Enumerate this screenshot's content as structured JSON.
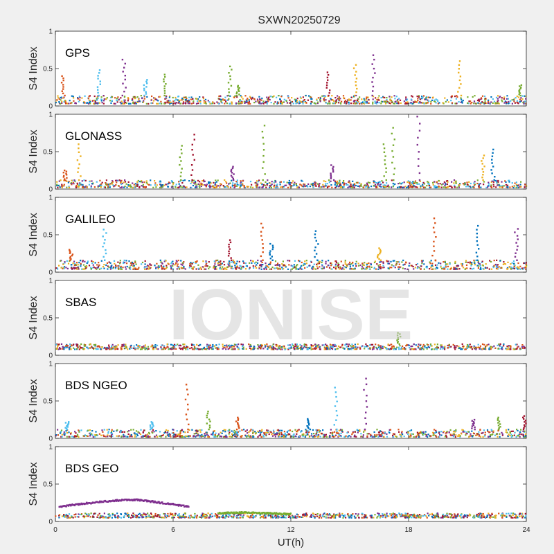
{
  "figure": {
    "title": "SXWN20250729",
    "xlabel": "UT(h)",
    "watermark": "IONISE"
  },
  "colors": {
    "figure_background": "#f0f0f0",
    "axes_background": "#ffffff",
    "series_palette": [
      "#0072BD",
      "#D95319",
      "#EDB120",
      "#7E2F8E",
      "#77AC30",
      "#4DBEEE",
      "#A2142F"
    ]
  },
  "chart_data": [
    {
      "type": "scatter",
      "label": "GPS",
      "ylabel": "S4 Index",
      "xlim": [
        0,
        24
      ],
      "ylim": [
        0,
        1
      ],
      "yticks": [
        0,
        0.5,
        1
      ],
      "ytick_labels": [
        "0",
        "0.5",
        "1"
      ],
      "xticks": [
        0,
        6,
        12,
        18,
        24
      ],
      "xtick_labels": [],
      "baseline": [
        0.03,
        0.14
      ],
      "spikes": [
        {
          "x": 0.4,
          "y": 0.4,
          "color": "#D95319"
        },
        {
          "x": 2.2,
          "y": 0.48,
          "color": "#4DBEEE"
        },
        {
          "x": 3.5,
          "y": 0.62,
          "color": "#7E2F8E"
        },
        {
          "x": 4.6,
          "y": 0.35,
          "color": "#4DBEEE"
        },
        {
          "x": 5.6,
          "y": 0.42,
          "color": "#77AC30"
        },
        {
          "x": 8.9,
          "y": 0.53,
          "color": "#77AC30"
        },
        {
          "x": 9.3,
          "y": 0.27,
          "color": "#77AC30"
        },
        {
          "x": 13.9,
          "y": 0.45,
          "color": "#A2142F"
        },
        {
          "x": 15.3,
          "y": 0.55,
          "color": "#EDB120"
        },
        {
          "x": 16.2,
          "y": 0.68,
          "color": "#7E2F8E"
        },
        {
          "x": 20.6,
          "y": 0.6,
          "color": "#EDB120"
        },
        {
          "x": 23.7,
          "y": 0.28,
          "color": "#77AC30"
        }
      ]
    },
    {
      "type": "scatter",
      "label": "GLONASS",
      "ylabel": "S4 Index",
      "xlim": [
        0,
        24
      ],
      "ylim": [
        0,
        1
      ],
      "yticks": [
        0,
        0.5,
        1
      ],
      "ytick_labels": [
        "0",
        "0.5",
        "1"
      ],
      "xticks": [
        0,
        6,
        12,
        18,
        24
      ],
      "xtick_labels": [],
      "baseline": [
        0.02,
        0.12
      ],
      "spikes": [
        {
          "x": 0.5,
          "y": 0.25,
          "color": "#D95319"
        },
        {
          "x": 1.2,
          "y": 0.6,
          "color": "#EDB120"
        },
        {
          "x": 6.4,
          "y": 0.58,
          "color": "#77AC30"
        },
        {
          "x": 7.0,
          "y": 0.73,
          "color": "#A2142F"
        },
        {
          "x": 9.0,
          "y": 0.3,
          "color": "#7E2F8E"
        },
        {
          "x": 10.6,
          "y": 0.85,
          "color": "#77AC30"
        },
        {
          "x": 14.1,
          "y": 0.32,
          "color": "#7E2F8E"
        },
        {
          "x": 16.8,
          "y": 0.6,
          "color": "#77AC30"
        },
        {
          "x": 17.2,
          "y": 0.82,
          "color": "#77AC30"
        },
        {
          "x": 18.5,
          "y": 0.97,
          "color": "#7E2F8E"
        },
        {
          "x": 21.8,
          "y": 0.45,
          "color": "#EDB120"
        },
        {
          "x": 22.3,
          "y": 0.53,
          "color": "#0072BD"
        }
      ]
    },
    {
      "type": "scatter",
      "label": "GALILEO",
      "ylabel": "S4 Index",
      "xlim": [
        0,
        24
      ],
      "ylim": [
        0,
        1
      ],
      "yticks": [
        0,
        0.5,
        1
      ],
      "ytick_labels": [
        "0",
        "0.5",
        "1"
      ],
      "xticks": [
        0,
        6,
        12,
        18,
        24
      ],
      "xtick_labels": [],
      "baseline": [
        0.04,
        0.16
      ],
      "spikes": [
        {
          "x": 0.8,
          "y": 0.3,
          "color": "#D95319"
        },
        {
          "x": 2.5,
          "y": 0.57,
          "color": "#4DBEEE"
        },
        {
          "x": 8.9,
          "y": 0.43,
          "color": "#A2142F"
        },
        {
          "x": 10.5,
          "y": 0.65,
          "color": "#D95319"
        },
        {
          "x": 11.0,
          "y": 0.38,
          "color": "#0072BD"
        },
        {
          "x": 13.3,
          "y": 0.55,
          "color": "#0072BD"
        },
        {
          "x": 16.5,
          "y": 0.32,
          "color": "#EDB120"
        },
        {
          "x": 19.3,
          "y": 0.72,
          "color": "#D95319"
        },
        {
          "x": 21.5,
          "y": 0.62,
          "color": "#0072BD"
        },
        {
          "x": 23.5,
          "y": 0.58,
          "color": "#7E2F8E"
        }
      ]
    },
    {
      "type": "scatter",
      "label": "SBAS",
      "ylabel": "S4 Index",
      "xlim": [
        0,
        24
      ],
      "ylim": [
        0,
        1
      ],
      "yticks": [
        0,
        0.5,
        1
      ],
      "ytick_labels": [
        "0",
        "0.5",
        "1"
      ],
      "xticks": [
        0,
        6,
        12,
        18,
        24
      ],
      "xtick_labels": [],
      "baseline": [
        0.08,
        0.15
      ],
      "spikes": [
        {
          "x": 17.5,
          "y": 0.3,
          "color": "#77AC30"
        }
      ]
    },
    {
      "type": "scatter",
      "label": "BDS NGEO",
      "ylabel": "S4 Index",
      "xlim": [
        0,
        24
      ],
      "ylim": [
        0,
        1
      ],
      "yticks": [
        0,
        0.5,
        1
      ],
      "ytick_labels": [
        "0",
        "0.5",
        "1"
      ],
      "xticks": [
        0,
        6,
        12,
        18,
        24
      ],
      "xtick_labels": [],
      "baseline": [
        0.02,
        0.12
      ],
      "spikes": [
        {
          "x": 0.6,
          "y": 0.22,
          "color": "#4DBEEE"
        },
        {
          "x": 4.9,
          "y": 0.22,
          "color": "#4DBEEE"
        },
        {
          "x": 6.7,
          "y": 0.72,
          "color": "#D95319"
        },
        {
          "x": 7.8,
          "y": 0.36,
          "color": "#77AC30"
        },
        {
          "x": 9.3,
          "y": 0.28,
          "color": "#D95319"
        },
        {
          "x": 12.9,
          "y": 0.26,
          "color": "#0072BD"
        },
        {
          "x": 14.3,
          "y": 0.68,
          "color": "#4DBEEE"
        },
        {
          "x": 15.8,
          "y": 0.8,
          "color": "#7E2F8E"
        },
        {
          "x": 21.3,
          "y": 0.25,
          "color": "#7E2F8E"
        },
        {
          "x": 22.6,
          "y": 0.28,
          "color": "#77AC30"
        },
        {
          "x": 23.9,
          "y": 0.3,
          "color": "#A2142F"
        }
      ]
    },
    {
      "type": "scatter",
      "label": "BDS GEO",
      "ylabel": "S4 Index",
      "xlim": [
        0,
        24
      ],
      "ylim": [
        0,
        1
      ],
      "yticks": [
        0,
        0.5,
        1
      ],
      "ytick_labels": [
        "0",
        "0.5",
        "1"
      ],
      "xticks": [
        0,
        6,
        12,
        18,
        24
      ],
      "xtick_labels": [
        "0",
        "6",
        "12",
        "18",
        "24"
      ],
      "baseline": [
        0.05,
        0.11
      ],
      "spikes": [],
      "bands": [
        {
          "color": "#7E2F8E",
          "x": [
            0.2,
            1.5,
            3.0,
            4.2,
            5.4,
            6.8
          ],
          "y": [
            0.2,
            0.24,
            0.28,
            0.29,
            0.25,
            0.2
          ]
        },
        {
          "color": "#77AC30",
          "x": [
            8.3,
            9.5,
            10.8,
            12.0
          ],
          "y": [
            0.11,
            0.12,
            0.11,
            0.1
          ]
        }
      ]
    }
  ]
}
